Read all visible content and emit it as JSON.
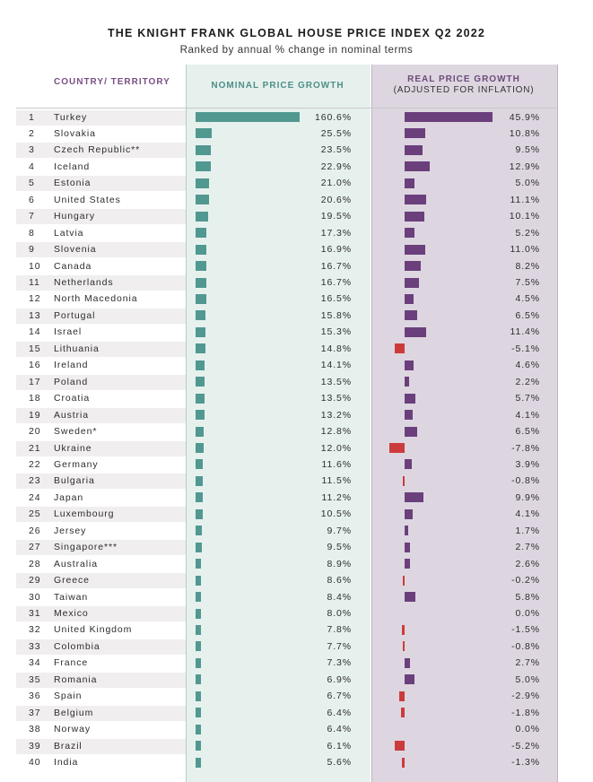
{
  "chart_data": {
    "type": "table",
    "title": "THE KNIGHT FRANK GLOBAL HOUSE PRICE INDEX Q2 2022",
    "subtitle": "Ranked by annual % change in nominal terms",
    "columns": {
      "country": "COUNTRY/ TERRITORY",
      "nominal": "NOMINAL PRICE GROWTH",
      "real": "REAL PRICE GROWTH",
      "real_sub": "(ADJUSTED FOR INFLATION)"
    },
    "colors": {
      "nominal_bar": "#519891",
      "real_positive": "#6b3f7c",
      "real_negative": "#cc3b3b",
      "nominal_band": "#e6f1ee",
      "real_band": "#ddd6e1"
    },
    "rows": [
      {
        "rank": "1",
        "country": "Turkey",
        "nominal": 160.6,
        "nominal_label": "160.6%",
        "real": 45.9,
        "real_label": "45.9%"
      },
      {
        "rank": "2",
        "country": "Slovakia",
        "nominal": 25.5,
        "nominal_label": "25.5%",
        "real": 10.8,
        "real_label": "10.8%"
      },
      {
        "rank": "3",
        "country": "Czech Republic**",
        "nominal": 23.5,
        "nominal_label": "23.5%",
        "real": 9.5,
        "real_label": "9.5%"
      },
      {
        "rank": "4",
        "country": "Iceland",
        "nominal": 22.9,
        "nominal_label": "22.9%",
        "real": 12.9,
        "real_label": "12.9%"
      },
      {
        "rank": "5",
        "country": "Estonia",
        "nominal": 21.0,
        "nominal_label": "21.0%",
        "real": 5.0,
        "real_label": "5.0%"
      },
      {
        "rank": "6",
        "country": "United States",
        "nominal": 20.6,
        "nominal_label": "20.6%",
        "real": 11.1,
        "real_label": "11.1%"
      },
      {
        "rank": "7",
        "country": "Hungary",
        "nominal": 19.5,
        "nominal_label": "19.5%",
        "real": 10.1,
        "real_label": "10.1%"
      },
      {
        "rank": "8",
        "country": "Latvia",
        "nominal": 17.3,
        "nominal_label": "17.3%",
        "real": 5.2,
        "real_label": "5.2%"
      },
      {
        "rank": "9",
        "country": "Slovenia",
        "nominal": 16.9,
        "nominal_label": "16.9%",
        "real": 11.0,
        "real_label": "11.0%"
      },
      {
        "rank": "10",
        "country": "Canada",
        "nominal": 16.7,
        "nominal_label": "16.7%",
        "real": 8.2,
        "real_label": "8.2%"
      },
      {
        "rank": "11",
        "country": "Netherlands",
        "nominal": 16.7,
        "nominal_label": "16.7%",
        "real": 7.5,
        "real_label": "7.5%"
      },
      {
        "rank": "12",
        "country": "North Macedonia",
        "nominal": 16.5,
        "nominal_label": "16.5%",
        "real": 4.5,
        "real_label": "4.5%"
      },
      {
        "rank": "13",
        "country": "Portugal",
        "nominal": 15.8,
        "nominal_label": "15.8%",
        "real": 6.5,
        "real_label": "6.5%"
      },
      {
        "rank": "14",
        "country": "Israel",
        "nominal": 15.3,
        "nominal_label": "15.3%",
        "real": 11.4,
        "real_label": "11.4%"
      },
      {
        "rank": "15",
        "country": "Lithuania",
        "nominal": 14.8,
        "nominal_label": "14.8%",
        "real": -5.1,
        "real_label": "-5.1%"
      },
      {
        "rank": "16",
        "country": "Ireland",
        "nominal": 14.1,
        "nominal_label": "14.1%",
        "real": 4.6,
        "real_label": "4.6%"
      },
      {
        "rank": "17",
        "country": "Poland",
        "nominal": 13.5,
        "nominal_label": "13.5%",
        "real": 2.2,
        "real_label": "2.2%"
      },
      {
        "rank": "18",
        "country": "Croatia",
        "nominal": 13.5,
        "nominal_label": "13.5%",
        "real": 5.7,
        "real_label": "5.7%"
      },
      {
        "rank": "19",
        "country": "Austria",
        "nominal": 13.2,
        "nominal_label": "13.2%",
        "real": 4.1,
        "real_label": "4.1%"
      },
      {
        "rank": "20",
        "country": "Sweden*",
        "nominal": 12.8,
        "nominal_label": "12.8%",
        "real": 6.5,
        "real_label": "6.5%"
      },
      {
        "rank": "21",
        "country": "Ukraine",
        "nominal": 12.0,
        "nominal_label": "12.0%",
        "real": -7.8,
        "real_label": "-7.8%"
      },
      {
        "rank": "22",
        "country": "Germany",
        "nominal": 11.6,
        "nominal_label": "11.6%",
        "real": 3.9,
        "real_label": "3.9%"
      },
      {
        "rank": "23",
        "country": "Bulgaria",
        "nominal": 11.5,
        "nominal_label": "11.5%",
        "real": -0.8,
        "real_label": "-0.8%"
      },
      {
        "rank": "24",
        "country": "Japan",
        "nominal": 11.2,
        "nominal_label": "11.2%",
        "real": 9.9,
        "real_label": "9.9%"
      },
      {
        "rank": "25",
        "country": "Luxembourg",
        "nominal": 10.5,
        "nominal_label": "10.5%",
        "real": 4.1,
        "real_label": "4.1%"
      },
      {
        "rank": "26",
        "country": "Jersey",
        "nominal": 9.7,
        "nominal_label": "9.7%",
        "real": 1.7,
        "real_label": "1.7%"
      },
      {
        "rank": "27",
        "country": "Singapore***",
        "nominal": 9.5,
        "nominal_label": "9.5%",
        "real": 2.7,
        "real_label": "2.7%"
      },
      {
        "rank": "28",
        "country": "Australia",
        "nominal": 8.9,
        "nominal_label": "8.9%",
        "real": 2.6,
        "real_label": "2.6%"
      },
      {
        "rank": "29",
        "country": "Greece",
        "nominal": 8.6,
        "nominal_label": "8.6%",
        "real": -0.2,
        "real_label": "-0.2%"
      },
      {
        "rank": "30",
        "country": "Taiwan",
        "nominal": 8.4,
        "nominal_label": "8.4%",
        "real": 5.8,
        "real_label": "5.8%"
      },
      {
        "rank": "31",
        "country": "Mexico",
        "nominal": 8.0,
        "nominal_label": "8.0%",
        "real": 0.0,
        "real_label": "0.0%"
      },
      {
        "rank": "32",
        "country": "United Kingdom",
        "nominal": 7.8,
        "nominal_label": "7.8%",
        "real": -1.5,
        "real_label": "-1.5%"
      },
      {
        "rank": "33",
        "country": "Colombia",
        "nominal": 7.7,
        "nominal_label": "7.7%",
        "real": -0.8,
        "real_label": "-0.8%"
      },
      {
        "rank": "34",
        "country": "France",
        "nominal": 7.3,
        "nominal_label": "7.3%",
        "real": 2.7,
        "real_label": "2.7%"
      },
      {
        "rank": "35",
        "country": "Romania",
        "nominal": 6.9,
        "nominal_label": "6.9%",
        "real": 5.0,
        "real_label": "5.0%"
      },
      {
        "rank": "36",
        "country": "Spain",
        "nominal": 6.7,
        "nominal_label": "6.7%",
        "real": -2.9,
        "real_label": "-2.9%"
      },
      {
        "rank": "37",
        "country": "Belgium",
        "nominal": 6.4,
        "nominal_label": "6.4%",
        "real": -1.8,
        "real_label": "-1.8%"
      },
      {
        "rank": "38",
        "country": "Norway",
        "nominal": 6.4,
        "nominal_label": "6.4%",
        "real": 0.0,
        "real_label": "0.0%"
      },
      {
        "rank": "39",
        "country": "Brazil",
        "nominal": 6.1,
        "nominal_label": "6.1%",
        "real": -5.2,
        "real_label": "-5.2%"
      },
      {
        "rank": "40",
        "country": "India",
        "nominal": 5.6,
        "nominal_label": "5.6%",
        "real": -1.3,
        "real_label": "-1.3%"
      }
    ]
  }
}
